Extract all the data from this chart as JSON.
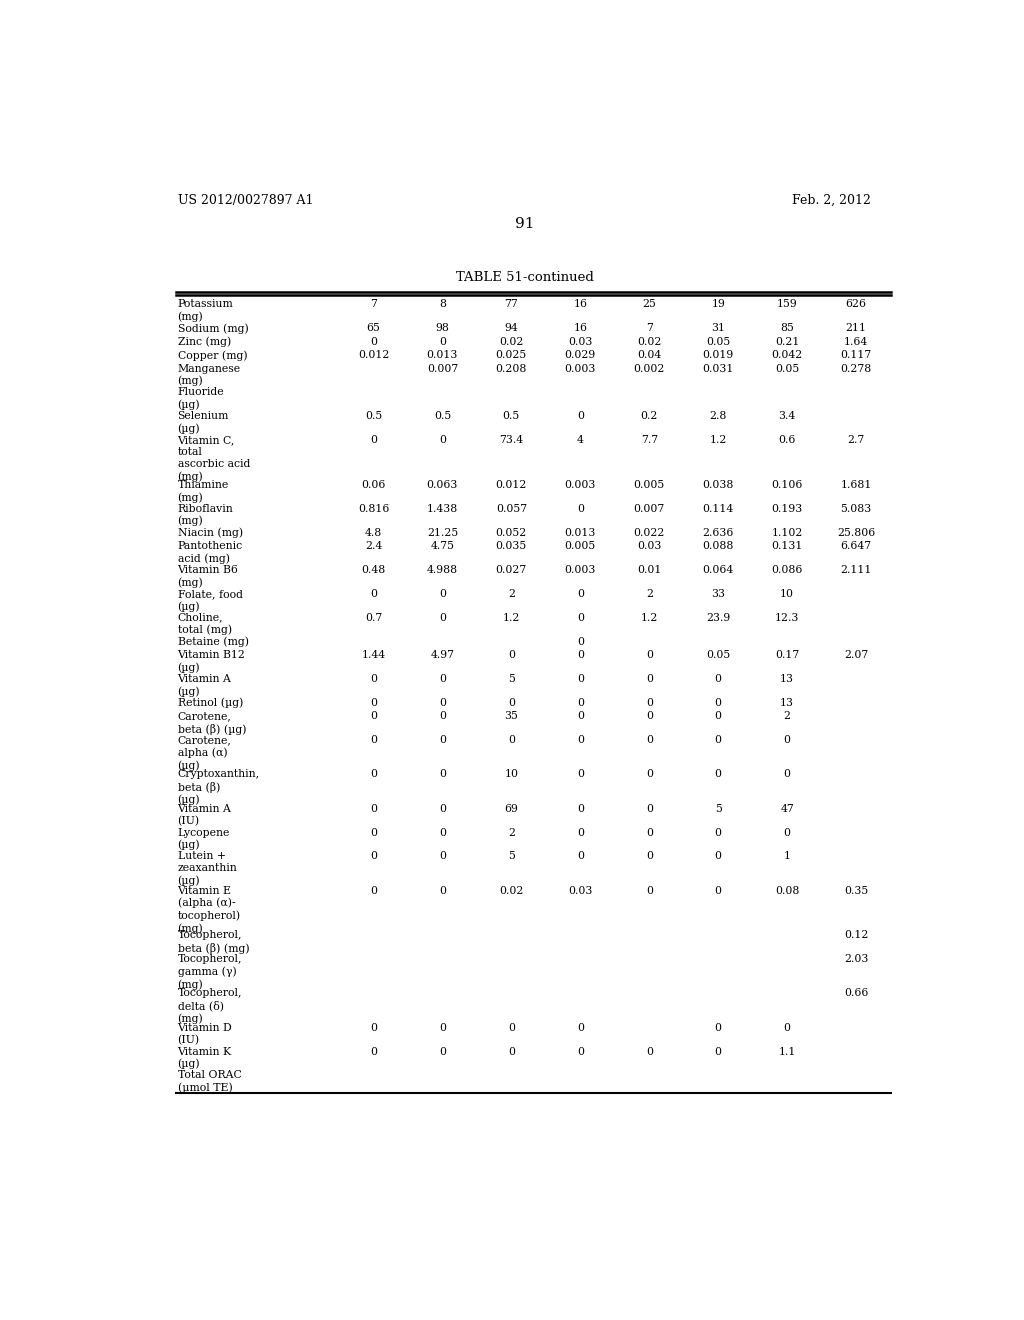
{
  "header_left": "US 2012/0027897 A1",
  "header_right": "Feb. 2, 2012",
  "page_number": "91",
  "table_title": "TABLE 51-continued",
  "rows": [
    [
      "Potassium\n(mg)",
      "7",
      "8",
      "77",
      "16",
      "25",
      "19",
      "159",
      "626"
    ],
    [
      "Sodium (mg)",
      "65",
      "98",
      "94",
      "16",
      "7",
      "31",
      "85",
      "211"
    ],
    [
      "Zinc (mg)",
      "0",
      "0",
      "0.02",
      "0.03",
      "0.02",
      "0.05",
      "0.21",
      "1.64"
    ],
    [
      "Copper (mg)",
      "0.012",
      "0.013",
      "0.025",
      "0.029",
      "0.04",
      "0.019",
      "0.042",
      "0.117"
    ],
    [
      "Manganese\n(mg)",
      "",
      "0.007",
      "0.208",
      "0.003",
      "0.002",
      "0.031",
      "0.05",
      "0.278"
    ],
    [
      "Fluoride\n(µg)",
      "",
      "",
      "",
      "",
      "",
      "",
      "",
      ""
    ],
    [
      "Selenium\n(µg)",
      "0.5",
      "0.5",
      "0.5",
      "0",
      "0.2",
      "2.8",
      "3.4",
      ""
    ],
    [
      "Vitamin C,\ntotal\nascorbic acid\n(mg)",
      "0",
      "0",
      "73.4",
      "4",
      "7.7",
      "1.2",
      "0.6",
      "2.7"
    ],
    [
      "Thiamine\n(mg)",
      "0.06",
      "0.063",
      "0.012",
      "0.003",
      "0.005",
      "0.038",
      "0.106",
      "1.681"
    ],
    [
      "Riboflavin\n(mg)",
      "0.816",
      "1.438",
      "0.057",
      "0",
      "0.007",
      "0.114",
      "0.193",
      "5.083"
    ],
    [
      "Niacin (mg)",
      "4.8",
      "21.25",
      "0.052",
      "0.013",
      "0.022",
      "2.636",
      "1.102",
      "25.806"
    ],
    [
      "Pantothenic\nacid (mg)",
      "2.4",
      "4.75",
      "0.035",
      "0.005",
      "0.03",
      "0.088",
      "0.131",
      "6.647"
    ],
    [
      "Vitamin B6\n(mg)",
      "0.48",
      "4.988",
      "0.027",
      "0.003",
      "0.01",
      "0.064",
      "0.086",
      "2.111"
    ],
    [
      "Folate, food\n(µg)",
      "0",
      "0",
      "2",
      "0",
      "2",
      "33",
      "10",
      ""
    ],
    [
      "Choline,\ntotal (mg)",
      "0.7",
      "0",
      "1.2",
      "0",
      "1.2",
      "23.9",
      "12.3",
      ""
    ],
    [
      "Betaine (mg)",
      "",
      "",
      "",
      "0",
      "",
      "",
      "",
      ""
    ],
    [
      "Vitamin B12\n(µg)",
      "1.44",
      "4.97",
      "0",
      "0",
      "0",
      "0.05",
      "0.17",
      "2.07"
    ],
    [
      "Vitamin A\n(µg)",
      "0",
      "0",
      "5",
      "0",
      "0",
      "0",
      "13",
      ""
    ],
    [
      "Retinol (µg)",
      "0",
      "0",
      "0",
      "0",
      "0",
      "0",
      "13",
      ""
    ],
    [
      "Carotene,\nbeta (β) (µg)",
      "0",
      "0",
      "35",
      "0",
      "0",
      "0",
      "2",
      ""
    ],
    [
      "Carotene,\nalpha (α)\n(µg)",
      "0",
      "0",
      "0",
      "0",
      "0",
      "0",
      "0",
      ""
    ],
    [
      "Cryptoxanthin,\nbeta (β)\n(µg)",
      "0",
      "0",
      "10",
      "0",
      "0",
      "0",
      "0",
      ""
    ],
    [
      "Vitamin A\n(IU)",
      "0",
      "0",
      "69",
      "0",
      "0",
      "5",
      "47",
      ""
    ],
    [
      "Lycopene\n(µg)",
      "0",
      "0",
      "2",
      "0",
      "0",
      "0",
      "0",
      ""
    ],
    [
      "Lutein +\nzeaxanthin\n(µg)",
      "0",
      "0",
      "5",
      "0",
      "0",
      "0",
      "1",
      ""
    ],
    [
      "Vitamin E\n(alpha (α)-\ntocopherol)\n(mg)",
      "0",
      "0",
      "0.02",
      "0.03",
      "0",
      "0",
      "0.08",
      "0.35"
    ],
    [
      "Tocopherol,\nbeta (β) (mg)",
      "",
      "",
      "",
      "",
      "",
      "",
      "",
      "0.12"
    ],
    [
      "Tocopherol,\ngamma (γ)\n(mg)",
      "",
      "",
      "",
      "",
      "",
      "",
      "",
      "2.03"
    ],
    [
      "Tocopherol,\ndelta (δ)\n(mg)",
      "",
      "",
      "",
      "",
      "",
      "",
      "",
      "0.66"
    ],
    [
      "Vitamin D\n(IU)",
      "0",
      "0",
      "0",
      "0",
      "",
      "0",
      "0",
      ""
    ],
    [
      "Vitamin K\n(µg)",
      "0",
      "0",
      "0",
      "0",
      "0",
      "0",
      "1.1",
      ""
    ],
    [
      "Total ORAC\n(µmol TE)",
      "",
      "",
      "",
      "",
      "",
      "",
      "",
      ""
    ]
  ]
}
